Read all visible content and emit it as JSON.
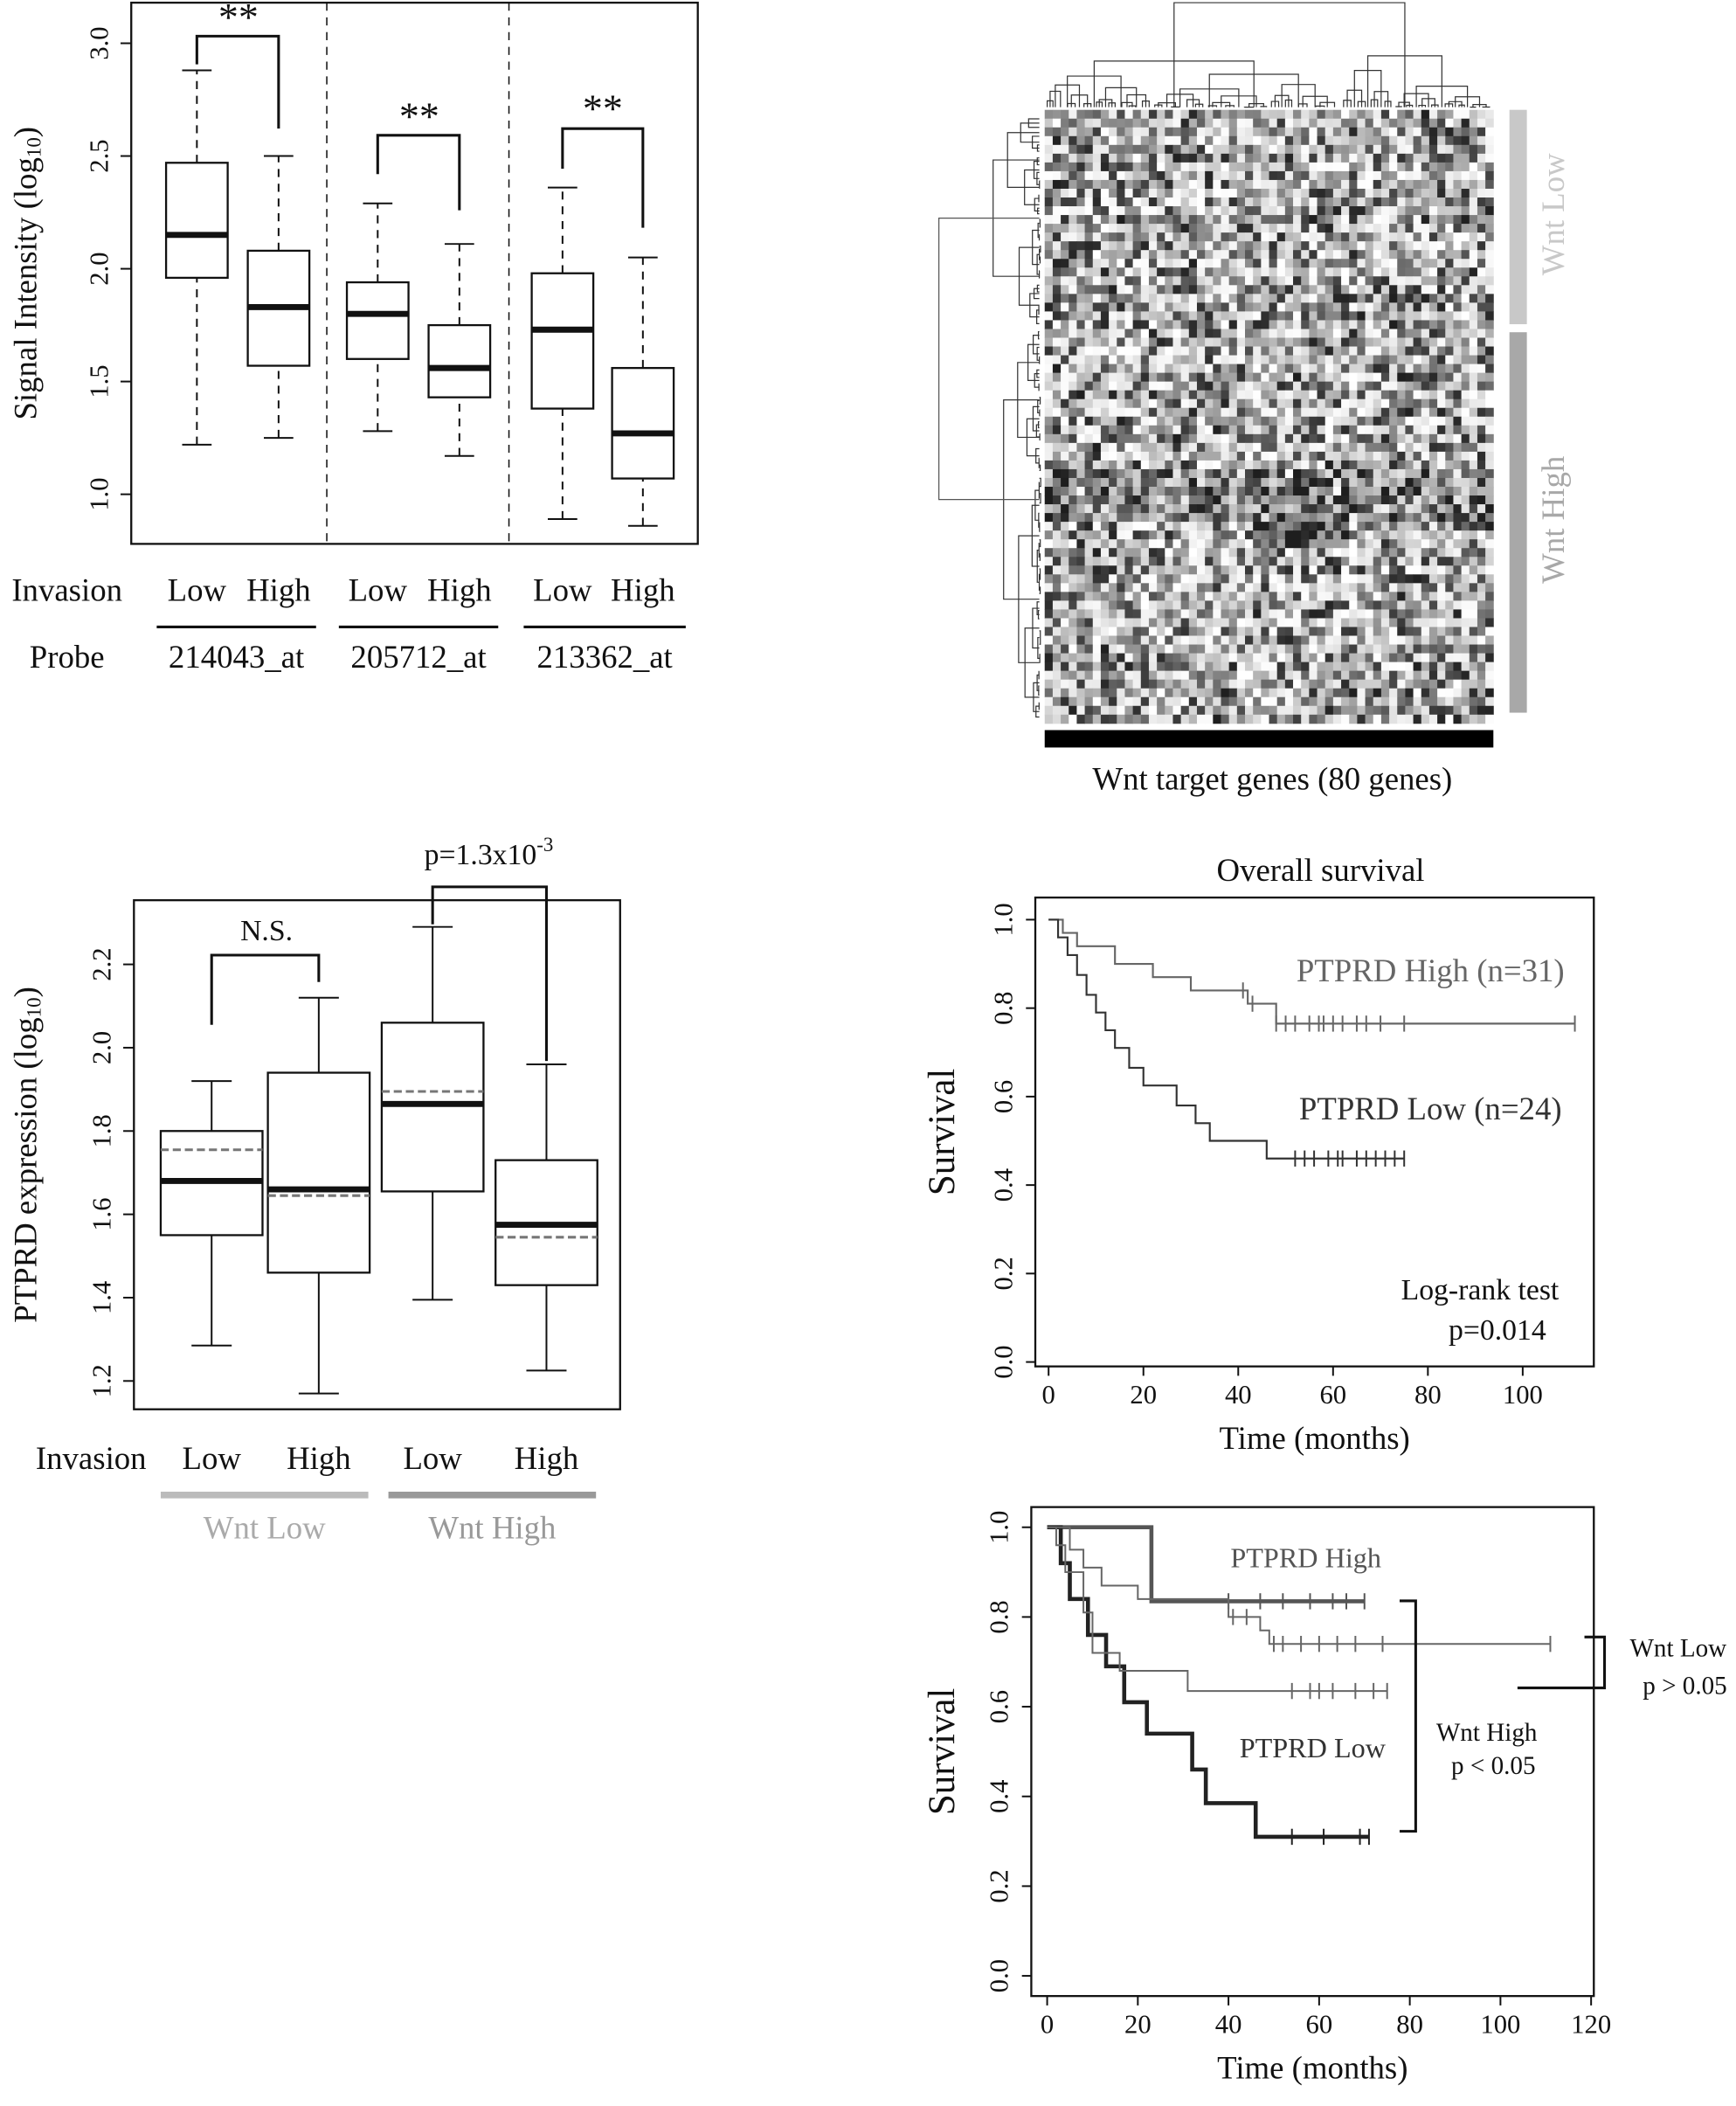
{
  "chart_data": [
    {
      "type": "box",
      "y_label": "Signal Intensity (log",
      "y_label_sub": "10",
      "y_label_end": ")",
      "x_label": "Invasion",
      "group_label": "Probe",
      "groups": [
        "214043_at",
        "205712_at",
        "213362_at"
      ],
      "categories": [
        "Low",
        "High",
        "Low",
        "High",
        "Low",
        "High"
      ],
      "boxes": [
        {
          "min": 1.22,
          "q1": 1.96,
          "median": 2.15,
          "q3": 2.47,
          "max": 2.88
        },
        {
          "min": 1.25,
          "q1": 1.57,
          "median": 1.83,
          "q3": 2.08,
          "max": 2.5
        },
        {
          "min": 1.28,
          "q1": 1.6,
          "median": 1.8,
          "q3": 1.94,
          "max": 2.29
        },
        {
          "min": 1.17,
          "q1": 1.43,
          "median": 1.56,
          "q3": 1.75,
          "max": 2.11
        },
        {
          "min": 0.89,
          "q1": 1.38,
          "median": 1.73,
          "q3": 1.98,
          "max": 2.36
        },
        {
          "min": 0.86,
          "q1": 1.07,
          "median": 1.27,
          "q3": 1.56,
          "max": 2.05
        }
      ],
      "ylim": [
        0.78,
        3.18
      ],
      "yticks": [
        {
          "value": 1,
          "label": "1.0"
        },
        1.5,
        {
          "value": 2,
          "label": "2.0"
        },
        2.5,
        {
          "value": 3,
          "label": "3.0"
        }
      ],
      "annotations": [
        "**",
        "**",
        "**"
      ]
    },
    {
      "type": "heatmap",
      "x_label": "Wnt target genes (80 genes)",
      "row_groups": [
        "Wnt Low",
        "Wnt High"
      ]
    },
    {
      "type": "box",
      "y_label": "PTPRD expression (log",
      "y_label_sub": "10",
      "y_label_end": ")",
      "x_label": "Invasion",
      "groups": [
        "Wnt Low",
        "Wnt High"
      ],
      "categories": [
        "Low",
        "High",
        "Low",
        "High"
      ],
      "boxes": [
        {
          "min": 1.285,
          "q1": 1.55,
          "median": 1.68,
          "q3": 1.8,
          "max": 1.92,
          "mean": 1.755
        },
        {
          "min": 1.17,
          "q1": 1.46,
          "median": 1.66,
          "q3": 1.94,
          "max": 2.12,
          "mean": 1.645
        },
        {
          "min": 1.395,
          "q1": 1.655,
          "median": 1.865,
          "q3": 2.06,
          "max": 2.29,
          "mean": 1.895
        },
        {
          "min": 1.225,
          "q1": 1.43,
          "median": 1.575,
          "q3": 1.73,
          "max": 1.96,
          "mean": 1.545
        }
      ],
      "ylim": [
        1.132,
        2.354
      ],
      "yticks": [
        1.2,
        1.4,
        1.6,
        1.8,
        {
          "value": 2,
          "label": "2.0"
        },
        2.2
      ],
      "annotations": [
        "N.S.",
        {
          "text": "p=1.3x10",
          "sup": "-3"
        }
      ]
    },
    {
      "type": "km",
      "title": "Overall survival",
      "x_label": "Time (months)",
      "y_label": "Survival",
      "xlim": [
        -2.8,
        115
      ],
      "ylim": [
        -0.01,
        1.05
      ],
      "xticks": [
        0,
        20,
        40,
        60,
        80,
        100
      ],
      "yticks": [
        {
          "value": 0,
          "label": "0.0"
        },
        0.2,
        0.4,
        0.6,
        0.8,
        {
          "value": 1,
          "label": "1.0"
        }
      ],
      "series": [
        {
          "name": "PTPRD High (n=31)",
          "color": "#666666",
          "x": [
            0,
            3,
            6,
            14,
            22,
            30,
            42,
            48,
            111
          ],
          "values": [
            1,
            0.97,
            0.94,
            0.9,
            0.87,
            0.84,
            0.81,
            0.765,
            0.765
          ],
          "censored": [
            41,
            43,
            48,
            50,
            52,
            55,
            57,
            58,
            60,
            62,
            65,
            67,
            70,
            75,
            111
          ]
        },
        {
          "name": "PTPRD Low (n=24)",
          "color": "#333333",
          "x": [
            0,
            2,
            4,
            6,
            8,
            10,
            12,
            14,
            17,
            20,
            27,
            31,
            34,
            46,
            75
          ],
          "values": [
            1,
            0.96,
            0.92,
            0.875,
            0.83,
            0.79,
            0.75,
            0.71,
            0.665,
            0.625,
            0.58,
            0.54,
            0.5,
            0.46,
            0.46
          ],
          "censored": [
            52,
            54,
            56,
            59,
            61,
            62,
            65,
            67,
            69,
            71,
            73,
            75
          ]
        }
      ],
      "annotations": [
        "Log-rank test",
        "p=0.014"
      ]
    },
    {
      "type": "km",
      "x_label": "Time (months)",
      "y_label": "Survival",
      "xlim": [
        -3.5,
        120.6
      ],
      "ylim": [
        -0.045,
        1.045
      ],
      "xticks": [
        0,
        20,
        40,
        60,
        80,
        100,
        120
      ],
      "yticks": [
        {
          "value": 0,
          "label": "0.0"
        },
        0.2,
        0.4,
        0.6,
        0.8,
        {
          "value": 1,
          "label": "1.0"
        }
      ],
      "series": [
        {
          "color": "#555555",
          "x": [
            0,
            23,
            70
          ],
          "values": [
            1,
            0.835,
            0.835
          ],
          "censored": [
            40,
            47,
            52,
            58,
            63,
            66,
            70
          ]
        },
        {
          "color": "#222222",
          "x": [
            0,
            3,
            5,
            9,
            13,
            17,
            22,
            32,
            35,
            46,
            71
          ],
          "values": [
            1,
            0.92,
            0.84,
            0.76,
            0.69,
            0.61,
            0.54,
            0.46,
            0.385,
            0.31,
            0.31
          ],
          "censored": [
            54,
            61,
            69,
            71
          ]
        },
        {
          "color": "#666666",
          "x": [
            0,
            5,
            8,
            12,
            20,
            40,
            47,
            49,
            111
          ],
          "values": [
            1,
            0.95,
            0.91,
            0.87,
            0.84,
            0.8,
            0.77,
            0.74,
            0.74
          ],
          "censored": [
            41,
            44,
            50,
            52,
            56,
            60,
            64,
            68,
            74,
            111
          ]
        },
        {
          "color": "#666666",
          "x": [
            0,
            2,
            4,
            8,
            10,
            16,
            31,
            75
          ],
          "values": [
            1,
            0.96,
            0.9,
            0.81,
            0.72,
            0.68,
            0.635,
            0.635
          ],
          "censored": [
            54,
            58,
            60,
            63,
            68,
            72,
            75
          ]
        }
      ],
      "annotations": [
        "PTPRD High",
        "PTPRD Low",
        "Wnt High",
        "p < 0.05",
        "Wnt Low",
        "p > 0.05"
      ]
    }
  ]
}
